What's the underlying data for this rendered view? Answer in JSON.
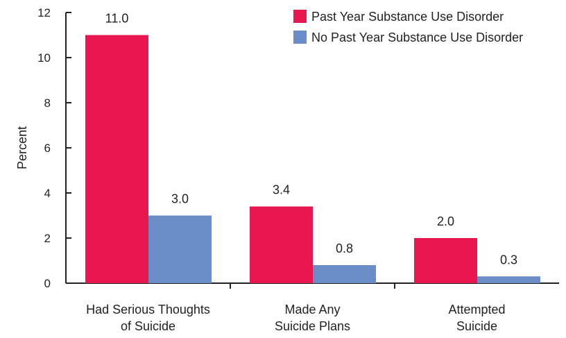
{
  "chart_data": {
    "type": "bar",
    "title": "",
    "xlabel": "",
    "ylabel": "Percent",
    "ylim": [
      0,
      12
    ],
    "yticks": [
      "0",
      "2",
      "4",
      "6",
      "8",
      "10",
      "12"
    ],
    "categories": [
      [
        "Had Serious Thoughts",
        "of Suicide"
      ],
      [
        "Made Any",
        "Suicide Plans"
      ],
      [
        "Attempted",
        "Suicide"
      ]
    ],
    "series": [
      {
        "name": "Past Year Substance Use Disorder",
        "color": "#E8174F",
        "values": [
          11.0,
          3.4,
          2.0
        ],
        "labels": [
          "11.0",
          "3.4",
          "2.0"
        ]
      },
      {
        "name": "No Past Year Substance Use Disorder",
        "color": "#6A8CC7",
        "values": [
          3.0,
          0.8,
          0.3
        ],
        "labels": [
          "3.0",
          "0.8",
          "0.3"
        ]
      }
    ],
    "legend_position": "top-right",
    "grid": false
  }
}
